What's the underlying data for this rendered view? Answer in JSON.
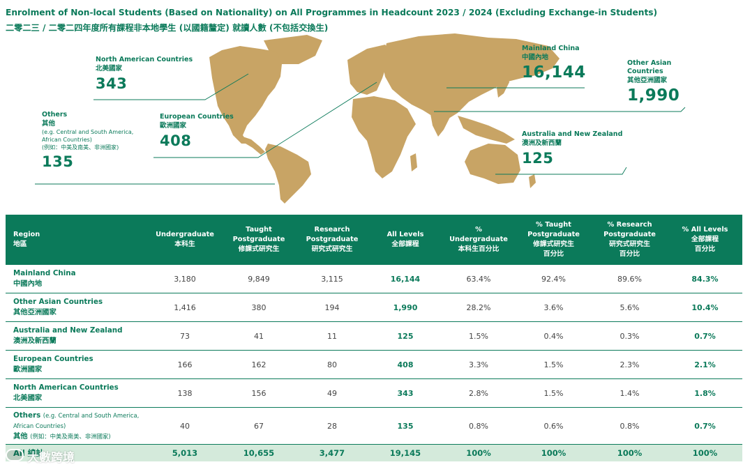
{
  "title": {
    "en": "Enrolment of Non-local Students (Based on Nationality) on All Programmes in Headcount 2023 / 2024 (Excluding Exchange-in Students)",
    "zh": "二零二三 / 二零二四年度所有課程非本地學生 (以國籍釐定) 就讀人數 (不包括交換生)"
  },
  "colors": {
    "accent": "#0b7a5a",
    "map_fill": "#c8a465",
    "total_row": "#d4eadb"
  },
  "map": {
    "callouts": {
      "north_america": {
        "en": "North American Countries",
        "zh": "北美國家",
        "value": "343"
      },
      "europe": {
        "en": "European Countries",
        "zh": "歐洲國家",
        "value": "408"
      },
      "others": {
        "en": "Others",
        "zh": "其他",
        "note_en_1": "(e.g. Central and South America,",
        "note_en_2": "African Countries)",
        "note_zh": "(例如：中美及南美、非洲國家)",
        "value": "135"
      },
      "mainland": {
        "en": "Mainland China",
        "zh": "中國內地",
        "value": "16,144"
      },
      "other_asian": {
        "en_1": "Other Asian",
        "en_2": "Countries",
        "zh": "其他亞洲國家",
        "value": "1,990"
      },
      "australia": {
        "en": "Australia and New Zealand",
        "zh": "澳洲及新西蘭",
        "value": "125"
      }
    }
  },
  "table": {
    "headers": {
      "region": {
        "en": "Region",
        "zh": "地區"
      },
      "ug": {
        "en": "Undergraduate",
        "zh": "本科生"
      },
      "tpg": {
        "en1": "Taught",
        "en2": "Postgraduate",
        "zh": "修課式研究生"
      },
      "rpg": {
        "en1": "Research",
        "en2": "Postgraduate",
        "zh": "研究式研究生"
      },
      "all": {
        "en": "All Levels",
        "zh": "全部課程"
      },
      "pug": {
        "en1": "%",
        "en2": "Undergraduate",
        "zh": "本科生百分比"
      },
      "ptpg": {
        "en1": "% Taught",
        "en2": "Postgraduate",
        "zh1": "修課式研究生",
        "zh2": "百分比"
      },
      "prpg": {
        "en1": "% Research",
        "en2": "Postgraduate",
        "zh1": "研究式研究生",
        "zh2": "百分比"
      },
      "pall": {
        "en": "% All Levels",
        "zh1": "全部課程",
        "zh2": "百分比"
      }
    },
    "rows": [
      {
        "en": "Mainland China",
        "zh": "中國內地",
        "ug": "3,180",
        "tpg": "9,849",
        "rpg": "3,115",
        "all": "16,144",
        "pug": "63.4%",
        "ptpg": "92.4%",
        "prpg": "89.6%",
        "pall": "84.3%"
      },
      {
        "en": "Other Asian Countries",
        "zh": "其他亞洲國家",
        "ug": "1,416",
        "tpg": "380",
        "rpg": "194",
        "all": "1,990",
        "pug": "28.2%",
        "ptpg": "3.6%",
        "prpg": "5.6%",
        "pall": "10.4%"
      },
      {
        "en": "Australia and New Zealand",
        "zh": "澳洲及新西蘭",
        "ug": "73",
        "tpg": "41",
        "rpg": "11",
        "all": "125",
        "pug": "1.5%",
        "ptpg": "0.4%",
        "prpg": "0.3%",
        "pall": "0.7%"
      },
      {
        "en": "European Countries",
        "zh": "歐洲國家",
        "ug": "166",
        "tpg": "162",
        "rpg": "80",
        "all": "408",
        "pug": "3.3%",
        "ptpg": "1.5%",
        "prpg": "2.3%",
        "pall": "2.1%"
      },
      {
        "en": "North American Countries",
        "zh": "北美國家",
        "ug": "138",
        "tpg": "156",
        "rpg": "49",
        "all": "343",
        "pug": "2.8%",
        "ptpg": "1.5%",
        "prpg": "1.4%",
        "pall": "1.8%"
      },
      {
        "en": "Others",
        "en_note_1": "(e.g. Central and South America,",
        "en_note_2": "African Countries)",
        "zh": "其他",
        "zh_note": "(例如：中美及南美、非洲國家)",
        "ug": "40",
        "tpg": "67",
        "rpg": "28",
        "all": "135",
        "pug": "0.8%",
        "ptpg": "0.6%",
        "prpg": "0.8%",
        "pall": "0.7%"
      }
    ],
    "total": {
      "label": "All 總計",
      "ug": "5,013",
      "tpg": "10,655",
      "rpg": "3,477",
      "all": "19,145",
      "pug": "100%",
      "ptpg": "100%",
      "prpg": "100%",
      "pall": "100%"
    }
  },
  "watermark": {
    "text": "大數跨境",
    "icon": "watermark-logo-icon"
  }
}
